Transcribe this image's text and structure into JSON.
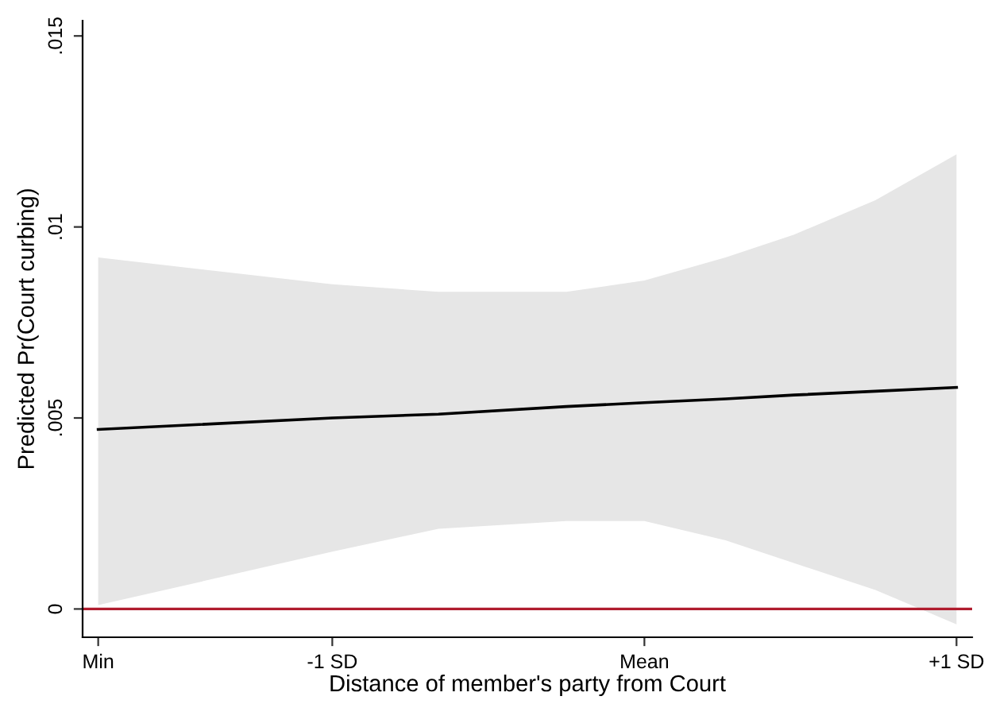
{
  "chart_data": {
    "type": "line",
    "xlabel": "Distance of member's party from Court",
    "ylabel": "Predicted Pr(Court curbing)",
    "x": [
      -1.75,
      -1,
      -0.66,
      -0.25,
      0,
      0.26,
      0.48,
      0.74,
      1
    ],
    "series": [
      {
        "color": "#000000",
        "values": [
          0.0047,
          0.005,
          0.0051,
          0.0053,
          0.0054,
          0.0055,
          0.0056,
          0.0057,
          0.0058
        ],
        "lower": [
          0.0001,
          0.0015,
          0.0021,
          0.0023,
          0.0023,
          0.0018,
          0.0012,
          0.0005,
          -0.0004
        ],
        "upper": [
          0.0092,
          0.0085,
          0.0083,
          0.0083,
          0.0086,
          0.0092,
          0.0098,
          0.0107,
          0.0119
        ]
      }
    ],
    "xlim": [
      -1.8,
      1.05
    ],
    "xticks": [
      {
        "value": -1.75,
        "label": "Min"
      },
      {
        "value": -1,
        "label": "-1 SD"
      },
      {
        "value": 0,
        "label": "Mean"
      },
      {
        "value": 1,
        "label": "+1 SD"
      }
    ],
    "ylim": [
      -0.00074,
      0.0154
    ],
    "yticks": [
      0,
      {
        "value": 0.005,
        "label": ".005"
      },
      {
        "value": 0.01,
        "label": ".01"
      },
      {
        "value": 0.015,
        "label": ".015"
      }
    ],
    "ref_lines": [
      {
        "axis": "y",
        "value": 0,
        "color": "#b01c2e"
      }
    ],
    "grid": false,
    "legend": false,
    "marker": "none",
    "line_style": "solid"
  }
}
